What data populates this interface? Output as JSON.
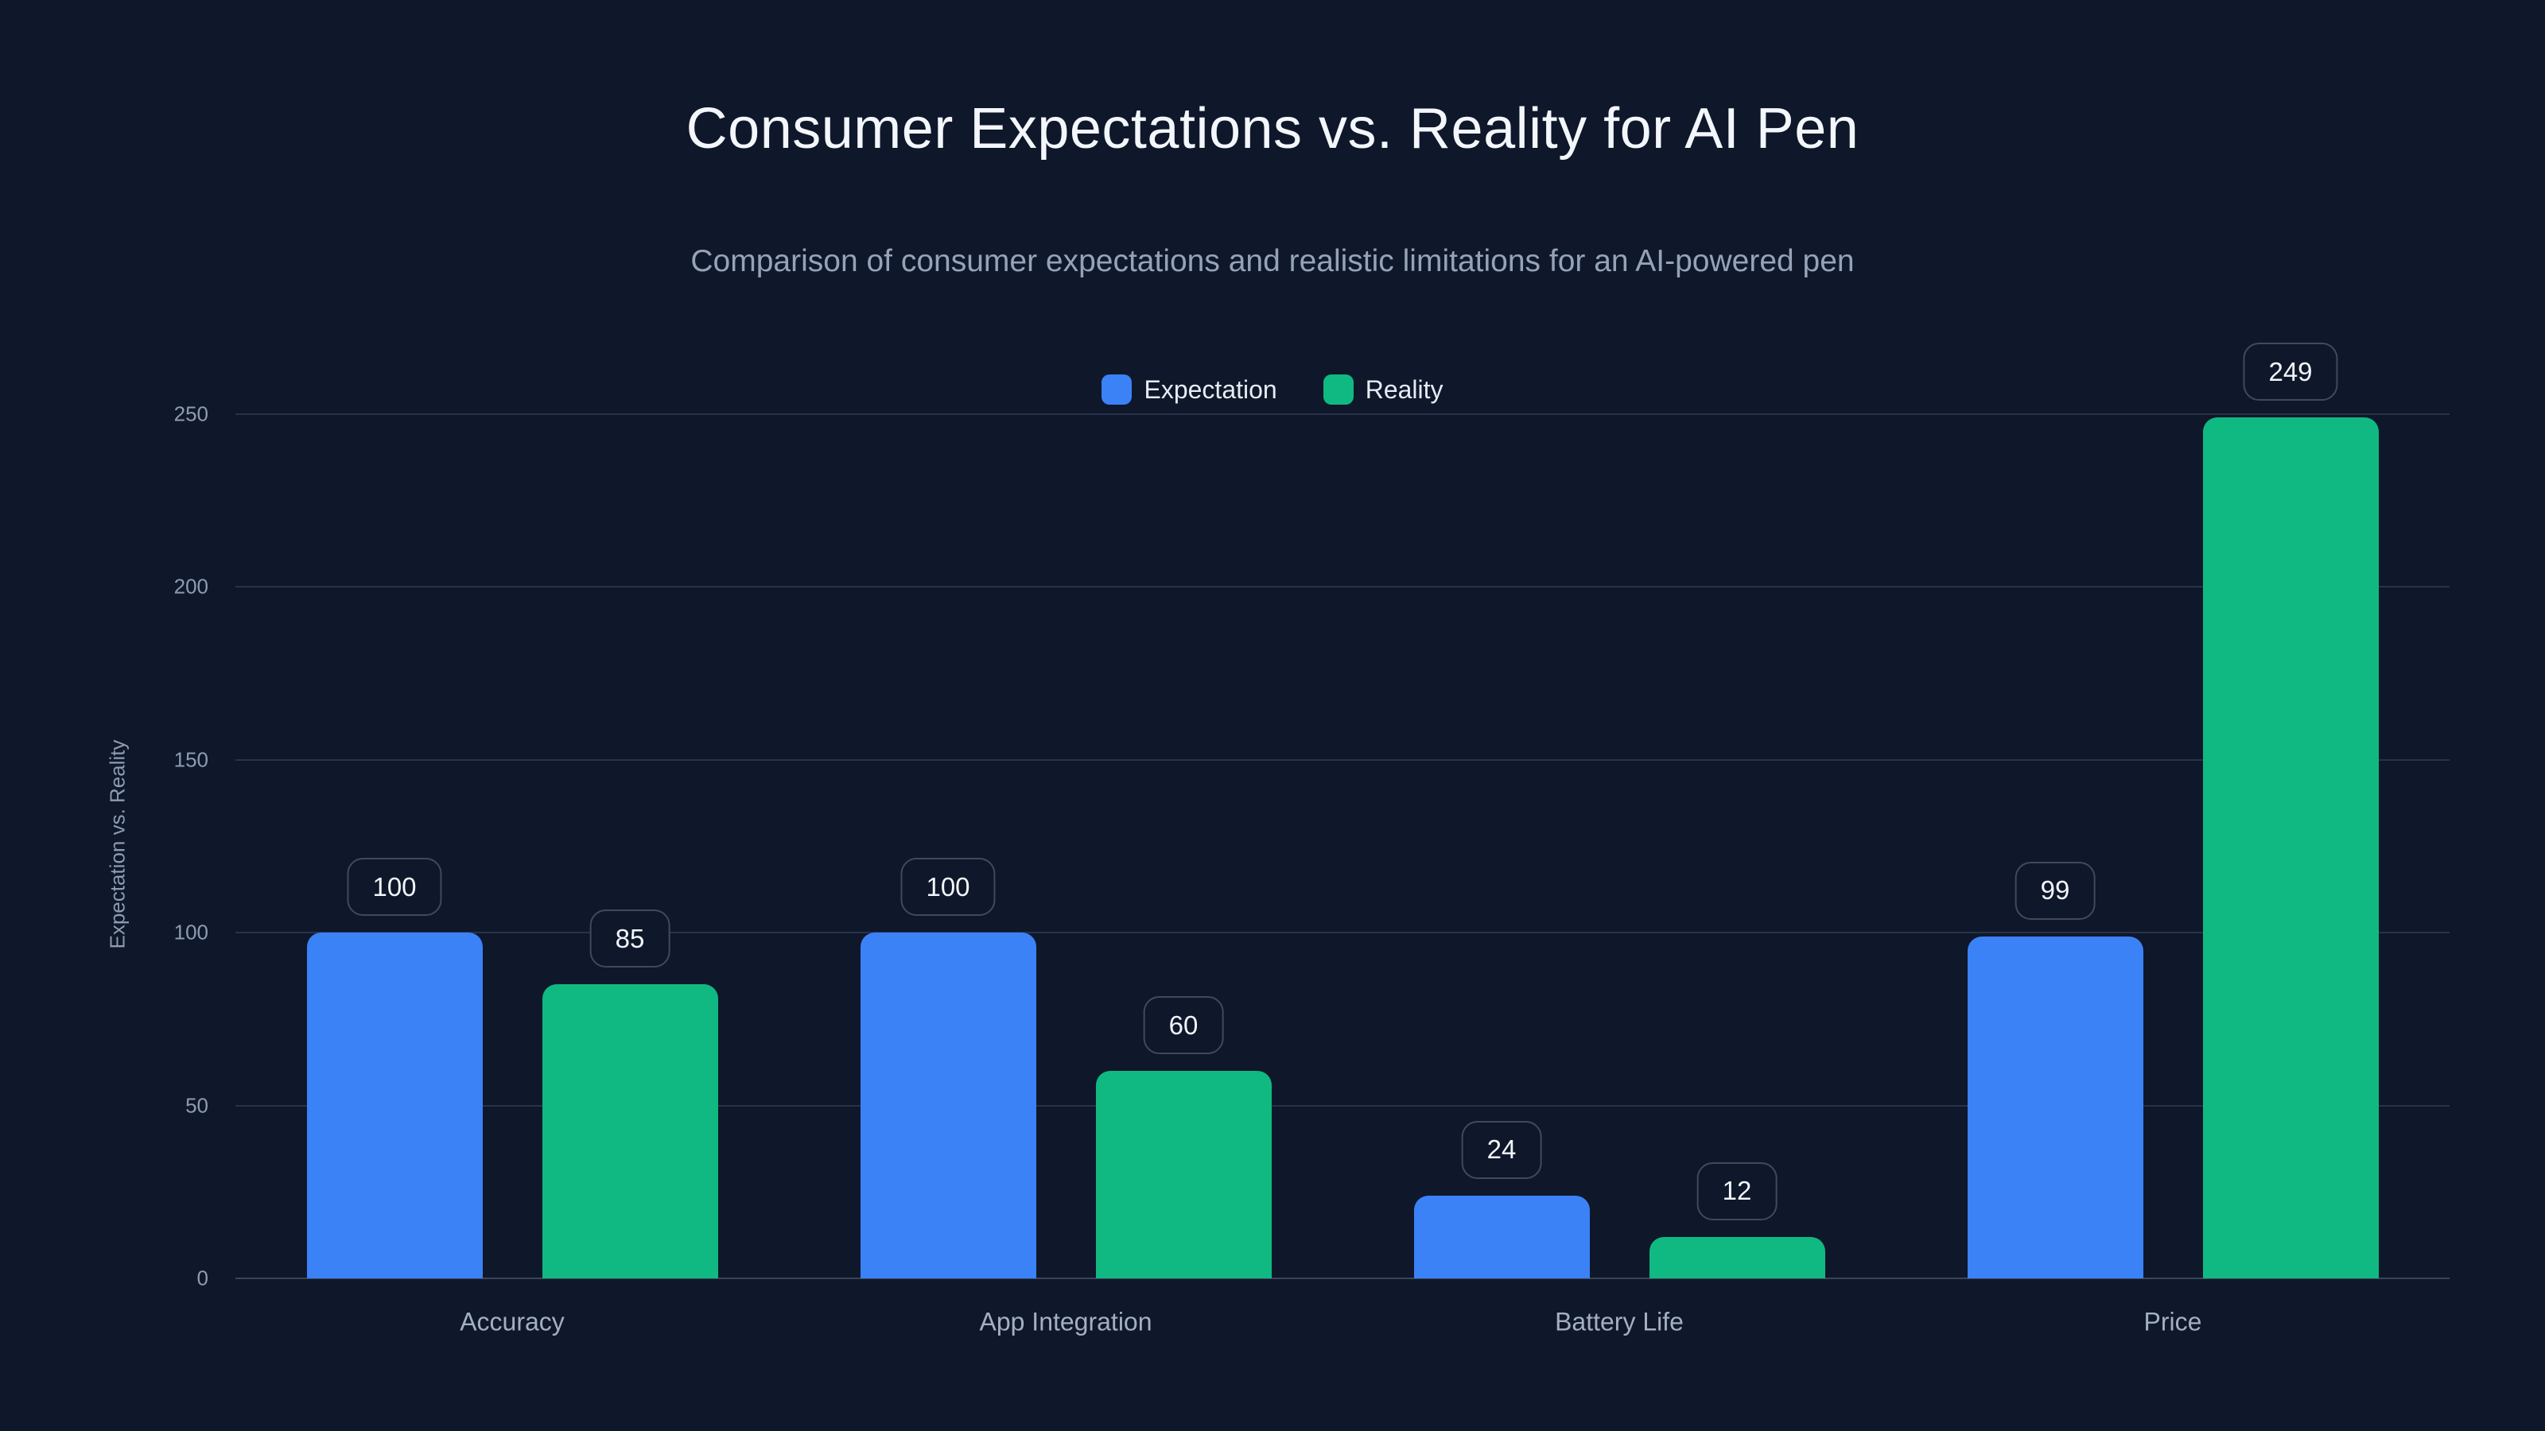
{
  "page": {
    "background": "#0f172a"
  },
  "header": {
    "title": "Consumer Expectations vs. Reality for AI Pen",
    "subtitle": "Comparison of consumer expectations and realistic limitations for an AI-powered pen"
  },
  "chart_data": {
    "type": "bar",
    "title": "Consumer Expectations vs. Reality for AI Pen",
    "subtitle": "Comparison of consumer expectations and realistic limitations for an AI-powered pen",
    "categories": [
      "Accuracy",
      "App Integration",
      "Battery Life",
      "Price"
    ],
    "series": [
      {
        "name": "Expectation",
        "color": "#3b82f6",
        "values": [
          100,
          100,
          24,
          99
        ]
      },
      {
        "name": "Reality",
        "color": "#10b981",
        "values": [
          85,
          60,
          12,
          249
        ]
      }
    ],
    "xlabel": "",
    "ylabel": "Expectation vs. Reality",
    "ylim": [
      0,
      250
    ],
    "yticks": [
      0,
      50,
      100,
      150,
      200,
      250
    ],
    "grid": true,
    "legend_position": "top-center",
    "value_labels": true
  },
  "colors": {
    "background": "#0f172a",
    "title": "#f3f6fb",
    "subtitle": "#94a3b8",
    "tick_label": "#8e9cb2",
    "category_label": "#a3b0c2",
    "gridline": "#27324a",
    "baseline": "#3a4559",
    "value_pill_border": "#3e4a5f",
    "value_pill_text": "#f2f5f9",
    "legend_text": "#e7ecf3",
    "expectation": "#3b82f6",
    "reality": "#10b981"
  }
}
